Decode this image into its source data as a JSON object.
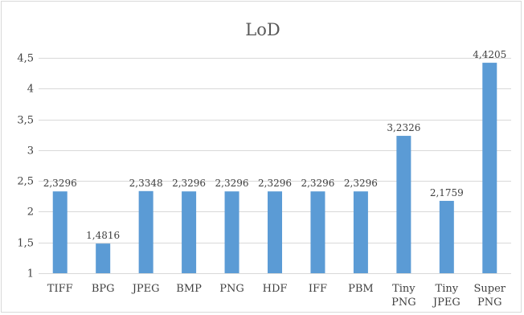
{
  "chart_data": {
    "type": "bar",
    "title": "LoD",
    "categories": [
      "TIFF",
      "BPG",
      "JPEG",
      "BMP",
      "PNG",
      "HDF",
      "IFF",
      "PBM",
      "Tiny PNG",
      "Tiny JPEG",
      "Super PNG"
    ],
    "values": [
      2.3296,
      1.4816,
      2.3348,
      2.3296,
      2.3296,
      2.3296,
      2.3296,
      2.3296,
      3.2326,
      2.1759,
      4.4205
    ],
    "data_labels": [
      "2,3296",
      "1,4816",
      "2,3348",
      "2,3296",
      "2,3296",
      "2,3296",
      "2,3296",
      "2,3296",
      "3,2326",
      "2,1759",
      "4,4205"
    ],
    "yticks": [
      1,
      1.5,
      2,
      2.5,
      3,
      3.5,
      4,
      4.5
    ],
    "ytick_labels": [
      "1",
      "1,5",
      "2",
      "2,5",
      "3",
      "3,5",
      "4",
      "4,5"
    ],
    "ylim": [
      1,
      4.5
    ],
    "xlabel": "",
    "ylabel": "",
    "grid": true,
    "legend": "none",
    "bar_color": "#5b9bd5"
  }
}
